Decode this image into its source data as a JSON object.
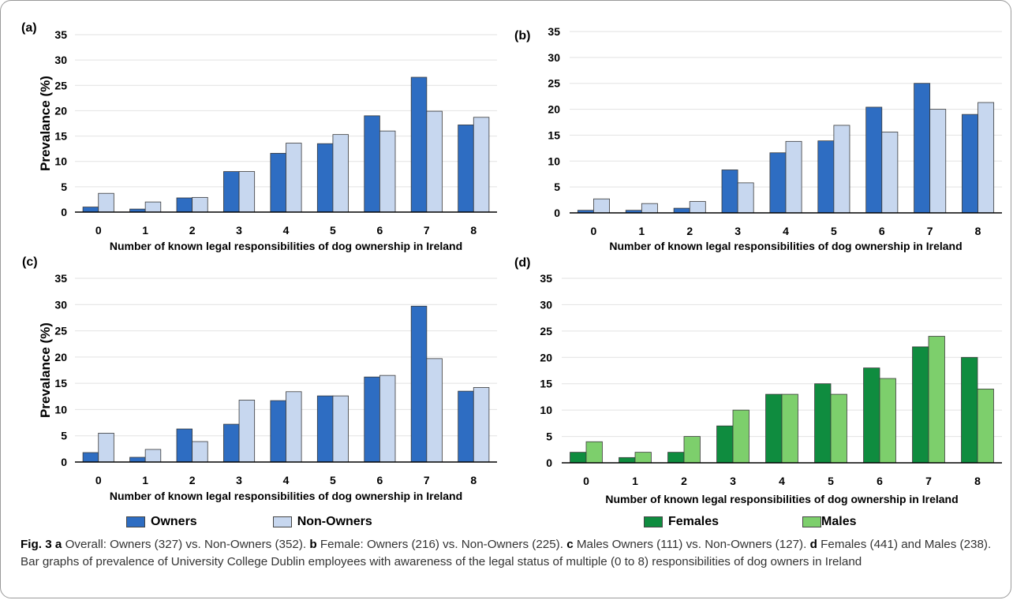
{
  "figure": {
    "number": "Fig. 3",
    "caption_parts": [
      {
        "letter": "a",
        "text": "Overall: Owners (327) vs. Non-Owners (352)."
      },
      {
        "letter": "b",
        "text": "Female: Owners (216) vs. Non-Owners (225)."
      },
      {
        "letter": "c",
        "text": "Males Owners (111) vs. Non-Owners (127)."
      },
      {
        "letter": "d",
        "text": "Females (441) and Males (238). Bar graphs of prevalence of University College Dublin employees with awareness of the legal status of multiple (0 to 8) responsibilities of dog owners in Ireland"
      }
    ]
  },
  "legends": [
    {
      "items": [
        {
          "name": "Owners",
          "color": "#2e6dc2"
        },
        {
          "name": "Non-Owners",
          "color": "#c7d7ef"
        }
      ]
    },
    {
      "items": [
        {
          "name": "Females",
          "color": "#0f8c3f"
        },
        {
          "name": "Males",
          "color": "#7dcf6c"
        }
      ]
    }
  ],
  "chart_data": [
    {
      "type": "bar",
      "panel_label": "(a)",
      "categories": [
        "0",
        "1",
        "2",
        "3",
        "4",
        "5",
        "6",
        "7",
        "8"
      ],
      "series": [
        {
          "name": "Owners",
          "color": "#2e6dc2",
          "values": [
            1,
            0.6,
            2.8,
            8,
            11.6,
            13.5,
            19,
            26.6,
            17.2
          ]
        },
        {
          "name": "Non-Owners",
          "color": "#c7d7ef",
          "values": [
            3.7,
            2,
            2.9,
            8,
            13.6,
            15.3,
            16,
            19.9,
            18.7
          ]
        }
      ],
      "xlabel": "Number of known legal responsibilities of dog ownership in Ireland",
      "ylabel": "Prevalance (%)",
      "ylim": [
        0,
        35
      ],
      "yticks": [
        "0",
        "5",
        "10",
        "15",
        "20",
        "25",
        "30",
        "35"
      ],
      "grid": true
    },
    {
      "type": "bar",
      "panel_label": "(b)",
      "categories": [
        "0",
        "1",
        "2",
        "3",
        "4",
        "5",
        "6",
        "7",
        "8"
      ],
      "series": [
        {
          "name": "Owners",
          "color": "#2e6dc2",
          "values": [
            0.5,
            0.5,
            0.9,
            8.3,
            11.6,
            13.9,
            20.4,
            25,
            19
          ]
        },
        {
          "name": "Non-Owners",
          "color": "#c7d7ef",
          "values": [
            2.7,
            1.8,
            2.2,
            5.8,
            13.8,
            16.9,
            15.6,
            20,
            21.3
          ]
        }
      ],
      "xlabel": "Number of known legal responsibilities of dog ownership in Ireland",
      "ylabel": "",
      "ylim": [
        0,
        35
      ],
      "yticks": [
        "0",
        "5",
        "10",
        "15",
        "20",
        "25",
        "30",
        "35"
      ],
      "grid": true
    },
    {
      "type": "bar",
      "panel_label": "(c)",
      "categories": [
        "0",
        "1",
        "2",
        "3",
        "4",
        "5",
        "6",
        "7",
        "8"
      ],
      "series": [
        {
          "name": "Owners",
          "color": "#2e6dc2",
          "values": [
            1.8,
            0.9,
            6.3,
            7.2,
            11.7,
            12.6,
            16.2,
            29.7,
            13.5
          ]
        },
        {
          "name": "Non-Owners",
          "color": "#c7d7ef",
          "values": [
            5.5,
            2.4,
            3.9,
            11.8,
            13.4,
            12.6,
            16.5,
            19.7,
            14.2
          ]
        }
      ],
      "xlabel": "Number of known legal responsibilities of dog ownership in Ireland",
      "ylabel": "Prevalance (%)",
      "ylim": [
        0,
        35
      ],
      "yticks": [
        "0",
        "5",
        "10",
        "15",
        "20",
        "25",
        "30",
        "35"
      ],
      "grid": true
    },
    {
      "type": "bar",
      "panel_label": "(d)",
      "categories": [
        "0",
        "1",
        "2",
        "3",
        "4",
        "5",
        "6",
        "7",
        "8"
      ],
      "series": [
        {
          "name": "Females",
          "color": "#0f8c3f",
          "values": [
            2,
            1,
            2,
            7,
            13,
            15,
            18,
            22,
            20
          ]
        },
        {
          "name": "Males",
          "color": "#7dcf6c",
          "values": [
            4,
            2,
            5,
            10,
            13,
            13,
            16,
            24,
            14
          ]
        }
      ],
      "xlabel": "Number of known legal responsibilities of dog ownership in Ireland",
      "ylabel": "",
      "ylim": [
        0,
        35
      ],
      "yticks": [
        "0",
        "5",
        "10",
        "15",
        "20",
        "25",
        "30",
        "35"
      ],
      "grid": true
    }
  ]
}
